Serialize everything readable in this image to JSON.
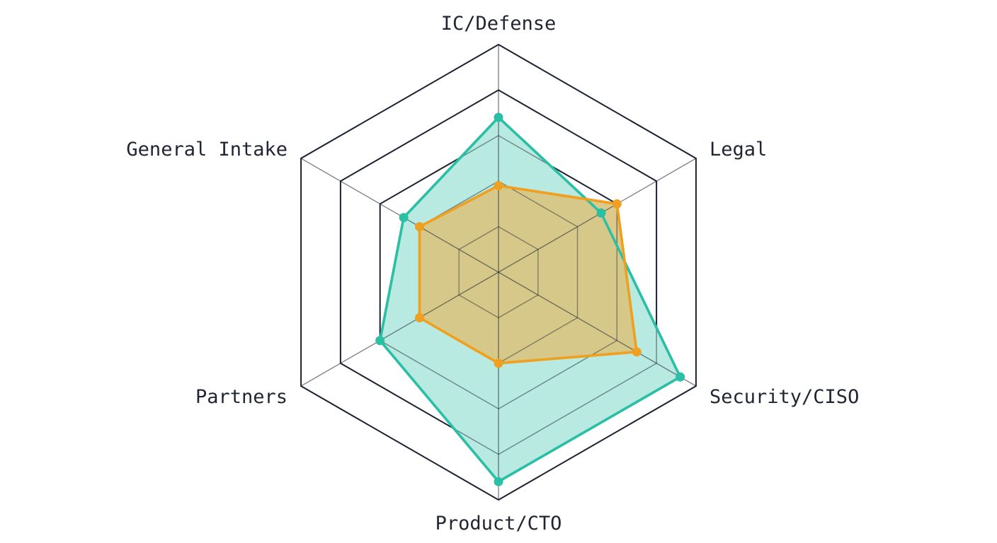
{
  "chart_data": {
    "type": "radar",
    "axes": [
      "IC/Defense",
      "Legal",
      "Security/CISO",
      "Product/CTO",
      "Partners",
      "General Intake"
    ],
    "rmax": 5,
    "ring_count": 5,
    "grid": true,
    "series": [
      {
        "values": [
          3.4,
          2.6,
          4.6,
          4.6,
          3.0,
          2.4
        ],
        "color": "#2bbfa6",
        "fill": "#b4e9df"
      },
      {
        "values": [
          1.9,
          3.0,
          3.5,
          2.0,
          2.0,
          2.0
        ],
        "color": "#f0a020",
        "fill": "#d9c47e"
      }
    ]
  }
}
